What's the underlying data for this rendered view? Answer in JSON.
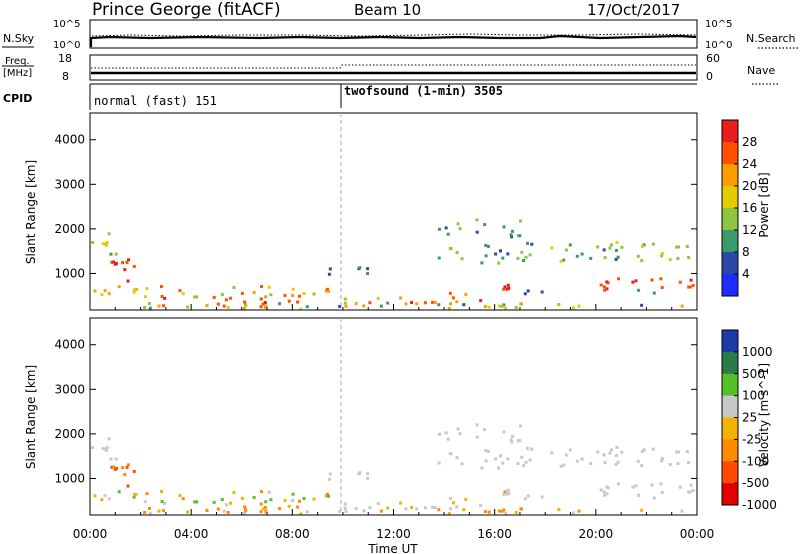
{
  "header": {
    "station": "Prince George (fitACF)",
    "beam": "Beam 10",
    "date": "17/Oct/2017"
  },
  "summary": {
    "nsky_label": "N.Sky",
    "nsky_tick_hi": "10^5",
    "nsky_tick_lo": "10^0",
    "nsearch_label": "N.Search",
    "nsearch_tick_hi": "10^5",
    "nsearch_tick_lo": "10^0",
    "freq_label_1": "Freq.",
    "freq_label_2": "[MHz]",
    "freq_tick_hi": "18",
    "freq_tick_lo": "8",
    "nave_label": "Nave",
    "nave_tick_hi": "60",
    "nave_tick_lo": "0",
    "cpid_label": "CPID",
    "cpid_mode_1": "normal (fast) 151",
    "cpid_mode_2": "twofsound (1-min) 3505"
  },
  "chart_data": [
    {
      "type": "heatmap",
      "name": "power",
      "xlabel": "Time UT",
      "ylabel": "Slant Range [km]",
      "x_ticks": [
        "00:00",
        "04:00",
        "08:00",
        "12:00",
        "16:00",
        "20:00",
        "00:00"
      ],
      "x_range_hours": [
        0,
        24
      ],
      "y_ticks": [
        1000,
        2000,
        3000,
        4000
      ],
      "ylim": [
        180,
        4600
      ],
      "colorbar_label": "Power [dB]",
      "colorbar_ticks": [
        "28",
        "24",
        "20",
        "16",
        "12",
        "8",
        "4"
      ],
      "colorbar_colors": [
        "#e81e1e",
        "#ff5000",
        "#ff9d00",
        "#e3cc00",
        "#8ec63f",
        "#3a9a6a",
        "#2b48a8",
        "#1f2cff"
      ]
    },
    {
      "type": "heatmap",
      "name": "velocity",
      "xlabel": "Time UT",
      "ylabel": "Slant Range [km]",
      "x_ticks": [
        "00:00",
        "04:00",
        "08:00",
        "12:00",
        "16:00",
        "20:00",
        "00:00"
      ],
      "x_range_hours": [
        0,
        24
      ],
      "y_ticks": [
        1000,
        2000,
        3000,
        4000
      ],
      "ylim": [
        180,
        4600
      ],
      "colorbar_label": "Velocity [m s^-1]",
      "colorbar_ticks": [
        "1000",
        "500",
        "100",
        "25",
        "-25",
        "-100",
        "-500",
        "-1000"
      ],
      "colorbar_colors": [
        "#1c3aa8",
        "#2a7a4a",
        "#56c02a",
        "#c8c8c8",
        "#f0b400",
        "#ff8a00",
        "#ff4a00",
        "#e00000"
      ]
    }
  ]
}
